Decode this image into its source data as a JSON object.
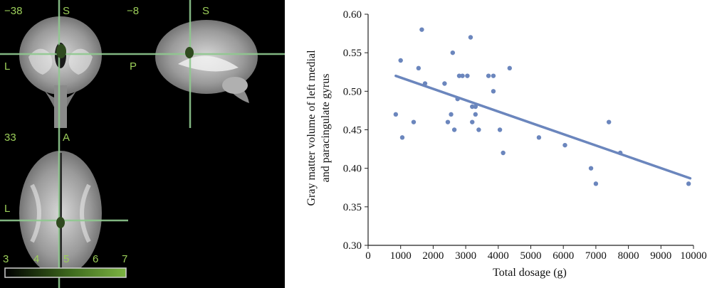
{
  "brain": {
    "coronal": {
      "coord": "−38",
      "top_label": "S",
      "left_label": "L"
    },
    "sagittal": {
      "coord": "−8",
      "top_label": "S",
      "left_label": "P"
    },
    "axial": {
      "coord": "33",
      "top_label": "A",
      "left_label": "L"
    },
    "colorbar": {
      "ticks": [
        "3",
        "4",
        "5",
        "6",
        "7"
      ],
      "color_low": "#000000",
      "color_high": "#7cb342"
    },
    "crosshair_color": "#8fc98f",
    "cluster_color": "#2f4a1f"
  },
  "chart_data": {
    "type": "scatter",
    "xlabel": "Total dosage (g)",
    "ylabel_lines": [
      "Gray matter volume of left medial",
      "and paracingulate gyrus"
    ],
    "xlim": [
      0,
      10000
    ],
    "ylim": [
      0.3,
      0.6
    ],
    "x_ticks": [
      "0",
      "1000",
      "2000",
      "3000",
      "4000",
      "5000",
      "6000",
      "7000",
      "8000",
      "9000",
      "10000"
    ],
    "y_ticks": [
      "0.30",
      "0.35",
      "0.40",
      "0.45",
      "0.50",
      "0.55",
      "0.60"
    ],
    "point_color": "#6b86bd",
    "line_color": "#6b86bd",
    "points": [
      {
        "x": 850,
        "y": 0.47
      },
      {
        "x": 1000,
        "y": 0.54
      },
      {
        "x": 1050,
        "y": 0.44
      },
      {
        "x": 1400,
        "y": 0.46
      },
      {
        "x": 1550,
        "y": 0.53
      },
      {
        "x": 1650,
        "y": 0.58
      },
      {
        "x": 1750,
        "y": 0.51
      },
      {
        "x": 2350,
        "y": 0.51
      },
      {
        "x": 2450,
        "y": 0.46
      },
      {
        "x": 2550,
        "y": 0.47
      },
      {
        "x": 2600,
        "y": 0.55
      },
      {
        "x": 2650,
        "y": 0.45
      },
      {
        "x": 2750,
        "y": 0.49
      },
      {
        "x": 2800,
        "y": 0.52
      },
      {
        "x": 2900,
        "y": 0.52
      },
      {
        "x": 3050,
        "y": 0.52
      },
      {
        "x": 3150,
        "y": 0.57
      },
      {
        "x": 3200,
        "y": 0.48
      },
      {
        "x": 3200,
        "y": 0.46
      },
      {
        "x": 3300,
        "y": 0.47
      },
      {
        "x": 3300,
        "y": 0.48
      },
      {
        "x": 3400,
        "y": 0.45
      },
      {
        "x": 3700,
        "y": 0.52
      },
      {
        "x": 3850,
        "y": 0.52
      },
      {
        "x": 3850,
        "y": 0.5
      },
      {
        "x": 4050,
        "y": 0.45
      },
      {
        "x": 4150,
        "y": 0.42
      },
      {
        "x": 4350,
        "y": 0.53
      },
      {
        "x": 5250,
        "y": 0.44
      },
      {
        "x": 6050,
        "y": 0.43
      },
      {
        "x": 6850,
        "y": 0.4
      },
      {
        "x": 7000,
        "y": 0.38
      },
      {
        "x": 7400,
        "y": 0.46
      },
      {
        "x": 7750,
        "y": 0.42
      },
      {
        "x": 9850,
        "y": 0.38
      }
    ],
    "regression_line": {
      "x": [
        850,
        9900
      ],
      "y": [
        0.52,
        0.387
      ]
    }
  }
}
